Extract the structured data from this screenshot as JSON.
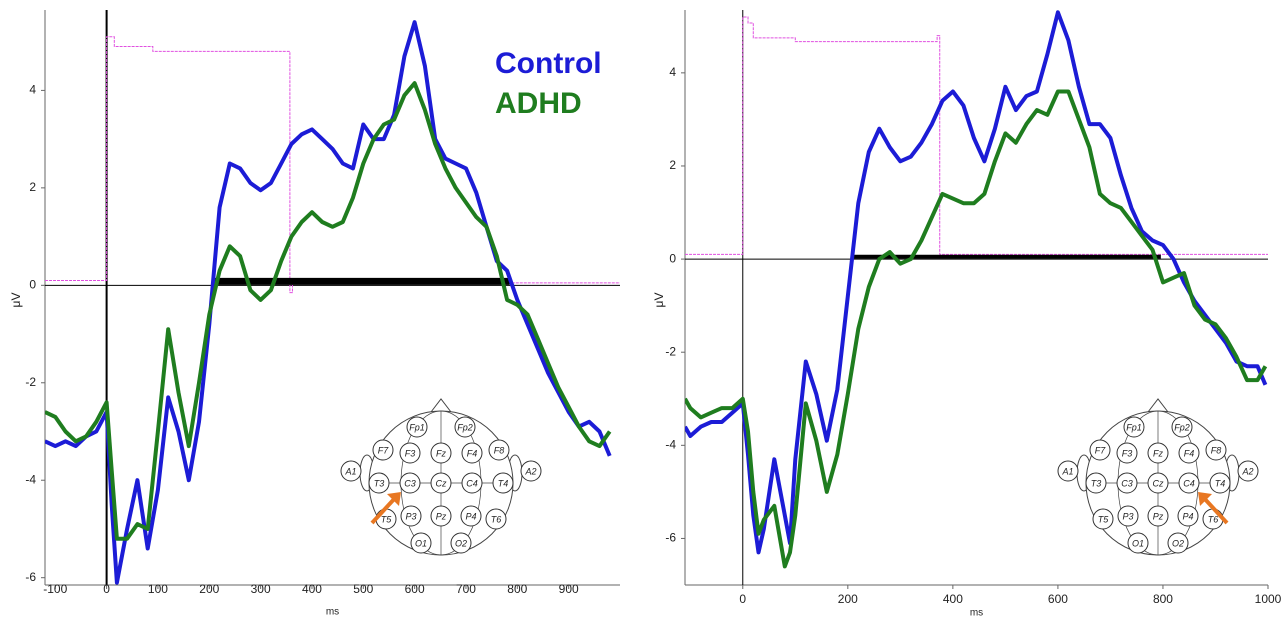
{
  "chart_data": [
    {
      "type": "line",
      "xlabel": "ms",
      "ylabel": "μV",
      "xlim": [
        -120,
        1000
      ],
      "ylim": [
        -6.15,
        5.65
      ],
      "xticks": [
        -100,
        0,
        100,
        200,
        300,
        400,
        500,
        600,
        700,
        800,
        900
      ],
      "yticks": [
        -6,
        -4,
        -2,
        0,
        2,
        4
      ],
      "legend": "upper right",
      "x": [
        -120,
        -100,
        -80,
        -60,
        -40,
        -20,
        0,
        10,
        20,
        40,
        60,
        80,
        100,
        120,
        140,
        160,
        180,
        200,
        220,
        240,
        260,
        280,
        300,
        320,
        340,
        360,
        380,
        400,
        420,
        440,
        460,
        480,
        500,
        520,
        540,
        560,
        580,
        600,
        620,
        640,
        660,
        680,
        700,
        720,
        740,
        760,
        780,
        800,
        820,
        840,
        860,
        880,
        900,
        920,
        940,
        960,
        980
      ],
      "series": [
        {
          "name": "Control",
          "color": "#1c1cd6",
          "values": [
            -3.2,
            -3.3,
            -3.2,
            -3.3,
            -3.1,
            -3.0,
            -2.6,
            -4.5,
            -6.1,
            -5.0,
            -4.0,
            -5.4,
            -4.2,
            -2.3,
            -3.0,
            -4.0,
            -2.8,
            -0.8,
            1.6,
            2.5,
            2.4,
            2.1,
            1.95,
            2.1,
            2.5,
            2.9,
            3.1,
            3.2,
            3.0,
            2.8,
            2.5,
            2.4,
            3.3,
            3.0,
            3.0,
            3.5,
            4.7,
            5.4,
            4.5,
            3.0,
            2.6,
            2.5,
            2.4,
            1.9,
            1.2,
            0.5,
            0.3,
            -0.3,
            -0.8,
            -1.3,
            -1.8,
            -2.2,
            -2.6,
            -2.9,
            -2.8,
            -3.0,
            -3.5
          ]
        },
        {
          "name": "ADHD",
          "color": "#1f7d1f",
          "values": [
            -2.6,
            -2.7,
            -3.0,
            -3.2,
            -3.1,
            -2.8,
            -2.4,
            -3.8,
            -5.2,
            -5.2,
            -4.9,
            -5.0,
            -3.0,
            -0.9,
            -2.2,
            -3.3,
            -2.0,
            -0.6,
            0.3,
            0.8,
            0.6,
            -0.1,
            -0.3,
            -0.1,
            0.5,
            1.0,
            1.3,
            1.5,
            1.3,
            1.2,
            1.3,
            1.8,
            2.5,
            3.0,
            3.3,
            3.4,
            3.9,
            4.15,
            3.6,
            2.9,
            2.4,
            2.0,
            1.7,
            1.4,
            1.2,
            0.6,
            -0.3,
            -0.4,
            -0.6,
            -1.1,
            -1.6,
            -2.1,
            -2.5,
            -2.9,
            -3.2,
            -3.3,
            -3.0
          ]
        }
      ],
      "stimulus_trace": {
        "color": "#e050e0",
        "x": [
          -120,
          0,
          0,
          15,
          15,
          90,
          90,
          357,
          357,
          362,
          362,
          1000
        ],
        "values": [
          0.1,
          0.1,
          5.1,
          5.1,
          4.9,
          4.9,
          4.8,
          4.8,
          -0.15,
          -0.15,
          0.05,
          0.05
        ]
      },
      "significance": {
        "x": [
          205,
          785
        ],
        "y": 0.08
      },
      "electrode_map": {
        "labels": [
          "Fp1",
          "Fp2",
          "F7",
          "F3",
          "Fz",
          "F4",
          "F8",
          "A1",
          "T3",
          "C3",
          "Cz",
          "C4",
          "T4",
          "A2",
          "T5",
          "P3",
          "Pz",
          "P4",
          "T6",
          "O1",
          "O2"
        ],
        "arrow_to": "C3"
      }
    },
    {
      "type": "line",
      "xlabel": "ms",
      "ylabel": "μV",
      "xlim": [
        -110,
        1000
      ],
      "ylim": [
        -7,
        5.35
      ],
      "xticks": [
        0,
        200,
        400,
        600,
        800,
        1000
      ],
      "yticks": [
        -6,
        -4,
        -2,
        0,
        2,
        4
      ],
      "x": [
        -110,
        -100,
        -80,
        -60,
        -40,
        -20,
        0,
        10,
        20,
        30,
        40,
        60,
        80,
        90,
        100,
        120,
        140,
        160,
        180,
        200,
        220,
        240,
        260,
        280,
        300,
        320,
        340,
        360,
        380,
        400,
        420,
        440,
        460,
        480,
        500,
        520,
        540,
        560,
        580,
        600,
        620,
        640,
        660,
        680,
        700,
        720,
        740,
        760,
        780,
        800,
        820,
        840,
        860,
        880,
        900,
        920,
        940,
        960,
        980,
        995
      ],
      "series": [
        {
          "color": "#1c1cd6",
          "values": [
            -3.6,
            -3.8,
            -3.6,
            -3.5,
            -3.5,
            -3.3,
            -3.1,
            -4.2,
            -5.5,
            -6.3,
            -5.8,
            -4.3,
            -5.5,
            -6.1,
            -4.3,
            -2.2,
            -2.9,
            -3.9,
            -2.8,
            -0.8,
            1.2,
            2.3,
            2.8,
            2.4,
            2.1,
            2.2,
            2.5,
            2.9,
            3.4,
            3.6,
            3.3,
            2.6,
            2.1,
            2.8,
            3.7,
            3.2,
            3.5,
            3.6,
            4.4,
            5.3,
            4.7,
            3.7,
            2.9,
            2.9,
            2.6,
            1.8,
            1.1,
            0.6,
            0.4,
            0.3,
            0.0,
            -0.5,
            -0.9,
            -1.2,
            -1.5,
            -1.8,
            -2.2,
            -2.3,
            -2.3,
            -2.7
          ]
        },
        {
          "color": "#1f7d1f",
          "values": [
            -3.0,
            -3.2,
            -3.4,
            -3.3,
            -3.2,
            -3.2,
            -3.0,
            -3.7,
            -5.0,
            -5.9,
            -5.6,
            -5.3,
            -6.6,
            -6.3,
            -5.5,
            -3.1,
            -3.9,
            -5.0,
            -4.2,
            -2.9,
            -1.5,
            -0.6,
            0.0,
            0.15,
            -0.1,
            0.0,
            0.4,
            0.9,
            1.4,
            1.3,
            1.2,
            1.2,
            1.4,
            2.1,
            2.7,
            2.5,
            2.9,
            3.2,
            3.1,
            3.6,
            3.6,
            3.0,
            2.4,
            1.4,
            1.2,
            1.1,
            0.8,
            0.5,
            0.2,
            -0.5,
            -0.4,
            -0.3,
            -1.0,
            -1.3,
            -1.4,
            -1.7,
            -2.1,
            -2.6,
            -2.6,
            -2.3
          ]
        }
      ],
      "stimulus_trace": {
        "color": "#e050e0",
        "x": [
          -110,
          0,
          0,
          10,
          10,
          20,
          20,
          100,
          100,
          370,
          370,
          375,
          375,
          1000
        ],
        "values": [
          0.1,
          0.1,
          5.2,
          5.2,
          5.07,
          5.07,
          4.75,
          4.75,
          4.67,
          4.67,
          4.8,
          4.8,
          0.1,
          0.1
        ]
      },
      "significance": {
        "x": [
          206,
          796
        ],
        "y": 0.05
      },
      "electrode_map": {
        "labels": [
          "Fp1",
          "Fp2",
          "F7",
          "F3",
          "Fz",
          "F4",
          "F8",
          "A1",
          "T3",
          "C3",
          "Cz",
          "C4",
          "T4",
          "A2",
          "T5",
          "P3",
          "Pz",
          "P4",
          "T6",
          "O1",
          "O2"
        ],
        "arrow_to": "C4"
      }
    }
  ]
}
